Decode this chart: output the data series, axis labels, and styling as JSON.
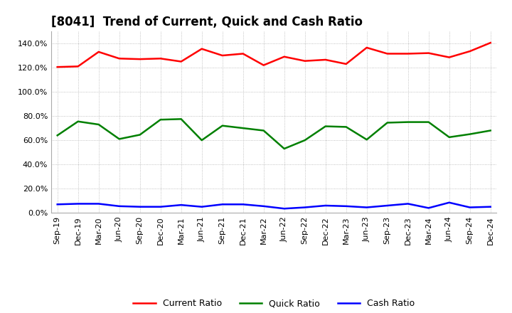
{
  "title": "[8041]  Trend of Current, Quick and Cash Ratio",
  "x_labels": [
    "Sep-19",
    "Dec-19",
    "Mar-20",
    "Jun-20",
    "Sep-20",
    "Dec-20",
    "Mar-21",
    "Jun-21",
    "Sep-21",
    "Dec-21",
    "Mar-22",
    "Jun-22",
    "Sep-22",
    "Dec-22",
    "Mar-23",
    "Jun-23",
    "Sep-23",
    "Dec-23",
    "Mar-24",
    "Jun-24",
    "Sep-24",
    "Dec-24"
  ],
  "current_ratio": [
    120.5,
    121.0,
    133.0,
    127.5,
    127.0,
    127.5,
    125.0,
    135.5,
    130.0,
    131.5,
    122.0,
    129.0,
    125.5,
    126.5,
    123.0,
    136.5,
    131.5,
    131.5,
    132.0,
    128.5,
    133.5,
    140.5
  ],
  "quick_ratio": [
    64.0,
    75.5,
    73.0,
    61.0,
    64.5,
    77.0,
    77.5,
    60.0,
    72.0,
    70.0,
    68.0,
    53.0,
    60.0,
    71.5,
    71.0,
    60.5,
    74.5,
    75.0,
    75.0,
    62.5,
    65.0,
    68.0
  ],
  "cash_ratio": [
    7.0,
    7.5,
    7.5,
    5.5,
    5.0,
    5.0,
    6.5,
    5.0,
    7.0,
    7.0,
    5.5,
    3.5,
    4.5,
    6.0,
    5.5,
    4.5,
    6.0,
    7.5,
    4.0,
    8.5,
    4.5,
    5.0
  ],
  "current_color": "#ff0000",
  "quick_color": "#008000",
  "cash_color": "#0000ff",
  "background_color": "#ffffff",
  "grid_color": "#b0b0b0",
  "ylim": [
    0,
    150
  ],
  "yticks": [
    0,
    20,
    40,
    60,
    80,
    100,
    120,
    140
  ],
  "legend_labels": [
    "Current Ratio",
    "Quick Ratio",
    "Cash Ratio"
  ],
  "title_fontsize": 12,
  "tick_fontsize": 8,
  "legend_fontsize": 9,
  "linewidth": 1.8
}
